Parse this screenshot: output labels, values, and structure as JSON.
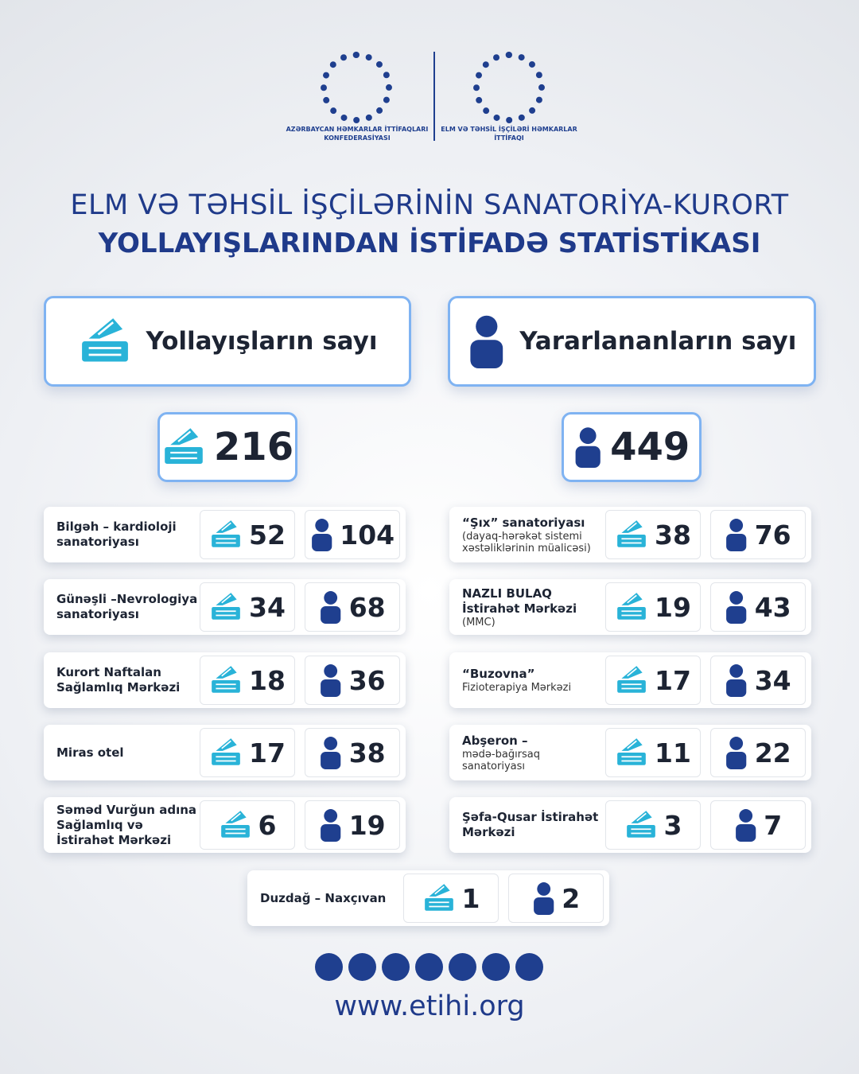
{
  "logos": [
    {
      "label": "AZƏRBAYCAN HƏMKARLAR İTTİFAQLARI KONFEDERASİYASI"
    },
    {
      "label": "ELM VƏ TƏHSİL İŞÇİLƏRİ HƏMKARLAR İTTİFAQI"
    }
  ],
  "title": {
    "line1": "ELM VƏ TƏHSİL İŞÇİLƏRİNİN SANATORİYA-KURORT",
    "line2": "YOLLAYIŞLARINDAN İSTİFADƏ STATİSTİKASI"
  },
  "summary": [
    {
      "label": "Yollayışların sayı",
      "value": 216
    },
    {
      "label": "Yararlananların sayı",
      "value": 449
    }
  ],
  "facilities": [
    {
      "name": "Bilgəh – kardioloji sanatoriyası",
      "tickets": 52,
      "beneficiaries": 104
    },
    {
      "name": "Günəşli –Nevrologiya sanatoriyası",
      "tickets": 34,
      "beneficiaries": 68
    },
    {
      "name": "Kurort Naftalan Sağlamlıq Mərkəzi",
      "tickets": 18,
      "beneficiaries": 36
    },
    {
      "name": "Miras otel",
      "tickets": 17,
      "beneficiaries": 38
    },
    {
      "name": "Səməd Vurğun adına Sağlamlıq və İstirahət Mərkəzi",
      "tickets": 6,
      "beneficiaries": 19
    },
    {
      "name": "“Şıx” sanatoriyası",
      "note": "(dayaq-hərəkət sistemi xəstəliklərinin müalicəsi)",
      "tickets": 38,
      "beneficiaries": 76
    },
    {
      "name": "NAZLI BULAQ İstirahət Mərkəzi",
      "note": "(MMC)",
      "tickets": 19,
      "beneficiaries": 43
    },
    {
      "name": "“Buzovna”",
      "note": "Fizioterapiya Mərkəzi",
      "tickets": 17,
      "beneficiaries": 34
    },
    {
      "name": "Abşeron –",
      "note": "mədə-bağırsaq sanatoriyası",
      "tickets": 11,
      "beneficiaries": 22
    },
    {
      "name": "Şəfa-Qusar İstirahət Mərkəzi",
      "tickets": 3,
      "beneficiaries": 7
    },
    {
      "name": "Duzdağ – Naxçıvan",
      "tickets": 1,
      "beneficiaries": 2
    }
  ],
  "website": "www.etihi.org"
}
